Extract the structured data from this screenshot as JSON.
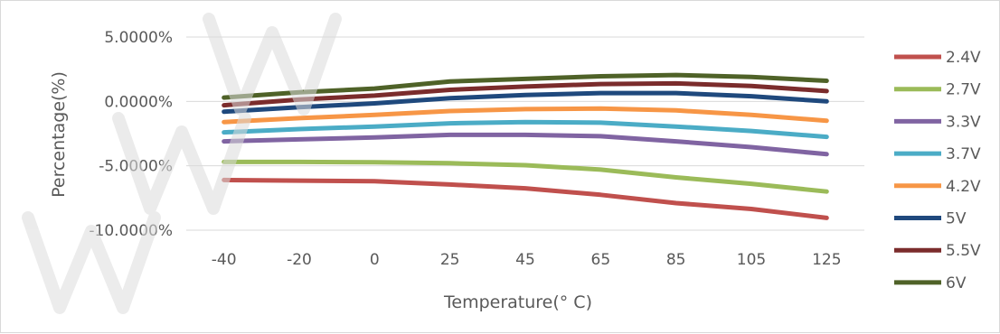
{
  "chart_data": {
    "type": "line",
    "xlabel": "Temperature(° C)",
    "ylabel": "Percentage(%)",
    "categories": [
      "-40",
      "-20",
      "0",
      "25",
      "45",
      "65",
      "85",
      "105",
      "125"
    ],
    "y_ticks": [
      "5.0000%",
      "0.0000%",
      "-5.0000%",
      "-10.0000%"
    ],
    "y_tick_values": [
      5,
      0,
      -5,
      -10
    ],
    "ylim": [
      -10,
      5
    ],
    "grid": true,
    "legend_position": "right",
    "series": [
      {
        "name": "2.4V",
        "color": "#C0504D",
        "values": [
          -6.1,
          -6.15,
          -6.2,
          -6.45,
          -6.75,
          -7.25,
          -7.9,
          -8.35,
          -9.05
        ]
      },
      {
        "name": "2.7V",
        "color": "#9BBB59",
        "values": [
          -4.7,
          -4.7,
          -4.72,
          -4.8,
          -4.95,
          -5.3,
          -5.9,
          -6.4,
          -7.0
        ]
      },
      {
        "name": "3.3V",
        "color": "#8064A2",
        "values": [
          -3.1,
          -2.95,
          -2.8,
          -2.6,
          -2.6,
          -2.7,
          -3.1,
          -3.55,
          -4.1
        ]
      },
      {
        "name": "3.7V",
        "color": "#4BACC6",
        "values": [
          -2.4,
          -2.15,
          -1.95,
          -1.7,
          -1.6,
          -1.65,
          -1.95,
          -2.3,
          -2.75
        ]
      },
      {
        "name": "4.2V",
        "color": "#F79646",
        "values": [
          -1.6,
          -1.3,
          -1.05,
          -0.75,
          -0.6,
          -0.55,
          -0.7,
          -1.05,
          -1.5
        ]
      },
      {
        "name": "5V",
        "color": "#1F497D",
        "values": [
          -0.8,
          -0.45,
          -0.15,
          0.25,
          0.5,
          0.65,
          0.65,
          0.4,
          0.0
        ]
      },
      {
        "name": "5.5V",
        "color": "#7B2C2C",
        "values": [
          -0.3,
          0.15,
          0.45,
          0.9,
          1.15,
          1.35,
          1.4,
          1.2,
          0.8
        ]
      },
      {
        "name": "6V",
        "color": "#4F6228",
        "values": [
          0.3,
          0.7,
          1.0,
          1.55,
          1.75,
          1.95,
          2.05,
          1.9,
          1.6
        ]
      }
    ]
  }
}
